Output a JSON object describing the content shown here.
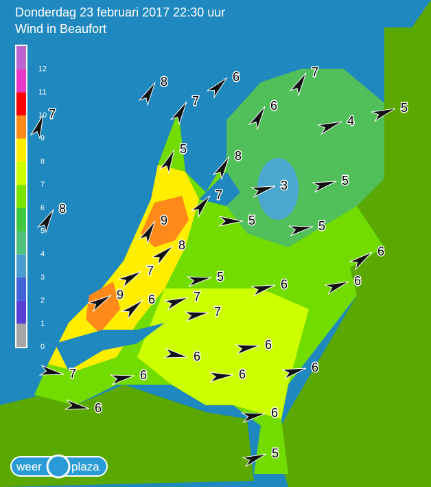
{
  "header": {
    "title": "Donderdag 23 februari 2017 22:30 uur",
    "subtitle": "Wind in Beaufort"
  },
  "legend": {
    "labels": [
      0,
      1,
      2,
      3,
      4,
      5,
      6,
      7,
      8,
      9,
      10,
      11,
      12
    ],
    "colors": [
      "#a6a6a6",
      "#5a3fd6",
      "#4163d8",
      "#4a9fd0",
      "#4fc07a",
      "#40c840",
      "#78e400",
      "#ccff00",
      "#ffee00",
      "#ff8a1a",
      "#ff0000",
      "#e838c8",
      "#b964d0"
    ]
  },
  "stations": [
    8,
    6,
    7,
    7,
    6,
    7,
    5,
    4,
    5,
    8,
    3,
    5,
    7,
    8,
    9,
    5,
    5,
    8,
    6,
    7,
    5,
    6,
    6,
    9,
    6,
    7,
    7,
    6,
    6,
    6,
    7,
    6,
    6,
    6,
    6,
    5
  ],
  "logo": {
    "left": "weer",
    "right": "plaza"
  }
}
